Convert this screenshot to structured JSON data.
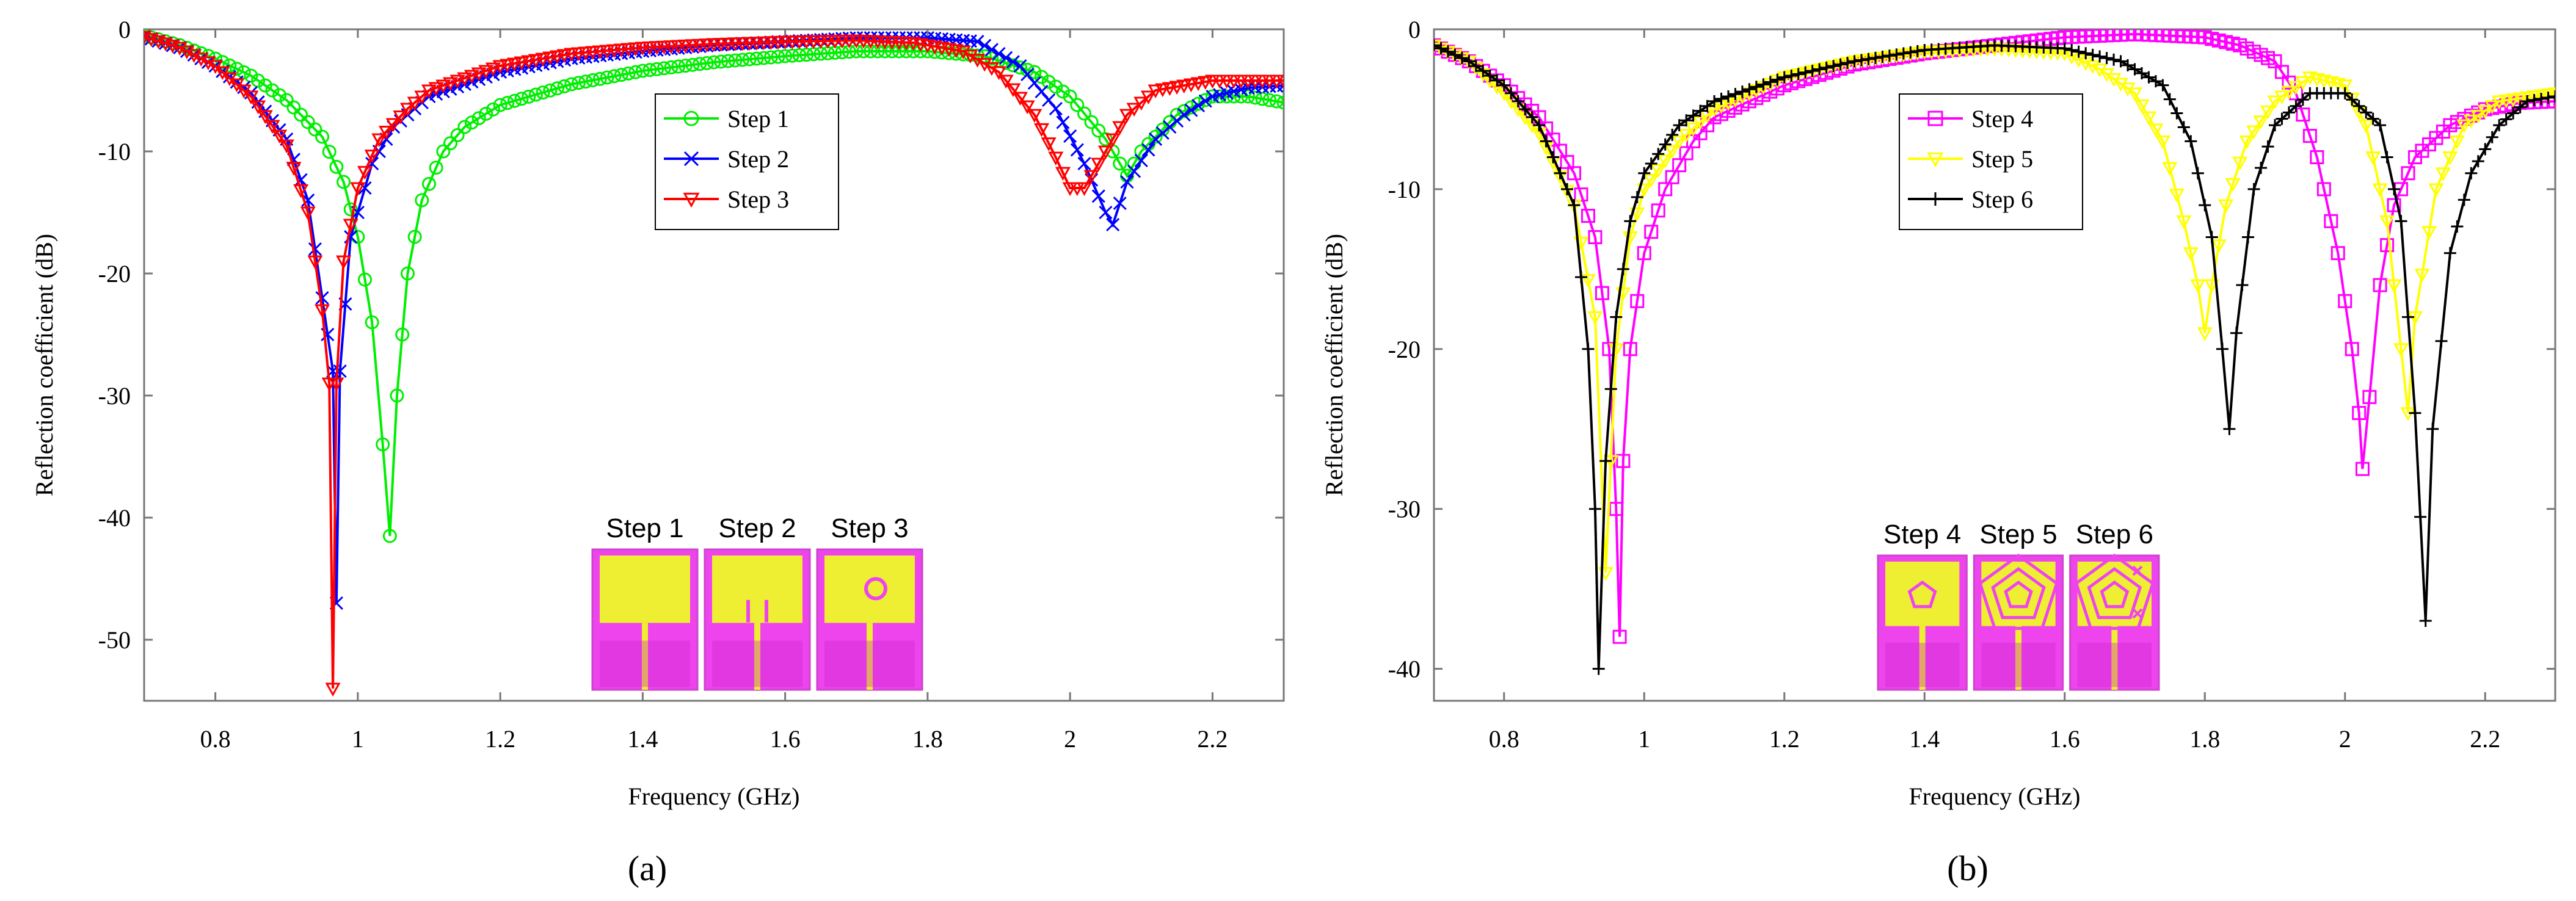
{
  "chart_data": [
    {
      "type": "line",
      "panel_label": "(a)",
      "xlabel": "Frequency (GHz)",
      "ylabel": "Reflection coefficient (dB)",
      "xlim": [
        0.7,
        2.3
      ],
      "ylim": [
        -55,
        0
      ],
      "x_ticks": [
        0.8,
        1,
        1.2,
        1.4,
        1.6,
        1.8,
        2,
        2.2
      ],
      "x_tick_labels": [
        "0.8",
        "1",
        "1.2",
        "1.4",
        "1.6",
        "1.8",
        "2",
        "2.2"
      ],
      "y_ticks": [
        0,
        -10,
        -20,
        -30,
        -40,
        -50
      ],
      "y_tick_labels": [
        "0",
        "-10",
        "-20",
        "-30",
        "-40",
        "-50"
      ],
      "grid": false,
      "legend_position": "top-center",
      "inset_labels": [
        "Step 1",
        "Step 2",
        "Step 3"
      ],
      "series": [
        {
          "name": "Step 1",
          "color": "#00ee00",
          "marker": "circle",
          "points": [
            [
              0.7,
              -0.5
            ],
            [
              0.75,
              -1.3
            ],
            [
              0.8,
              -2.4
            ],
            [
              0.85,
              -3.8
            ],
            [
              0.9,
              -5.8
            ],
            [
              0.95,
              -8.8
            ],
            [
              0.98,
              -12.5
            ],
            [
              1.0,
              -17
            ],
            [
              1.02,
              -24
            ],
            [
              1.035,
              -34
            ],
            [
              1.045,
              -41.5
            ],
            [
              1.055,
              -30
            ],
            [
              1.07,
              -20
            ],
            [
              1.09,
              -14
            ],
            [
              1.12,
              -10
            ],
            [
              1.15,
              -8
            ],
            [
              1.2,
              -6.2
            ],
            [
              1.3,
              -4.5
            ],
            [
              1.4,
              -3.4
            ],
            [
              1.5,
              -2.7
            ],
            [
              1.6,
              -2.2
            ],
            [
              1.7,
              -1.8
            ],
            [
              1.8,
              -1.8
            ],
            [
              1.88,
              -2.2
            ],
            [
              1.95,
              -3.5
            ],
            [
              2.0,
              -5.5
            ],
            [
              2.05,
              -9
            ],
            [
              2.08,
              -12
            ],
            [
              2.1,
              -10
            ],
            [
              2.15,
              -7
            ],
            [
              2.2,
              -5.5
            ],
            [
              2.25,
              -5.5
            ],
            [
              2.3,
              -6
            ]
          ]
        },
        {
          "name": "Step 2",
          "color": "#0000ff",
          "marker": "x",
          "points": [
            [
              0.7,
              -0.6
            ],
            [
              0.75,
              -1.5
            ],
            [
              0.8,
              -3
            ],
            [
              0.85,
              -5.2
            ],
            [
              0.9,
              -9
            ],
            [
              0.93,
              -14
            ],
            [
              0.95,
              -22
            ],
            [
              0.965,
              -28
            ],
            [
              0.97,
              -47
            ],
            [
              0.975,
              -28
            ],
            [
              0.99,
              -17
            ],
            [
              1.02,
              -11
            ],
            [
              1.05,
              -8
            ],
            [
              1.1,
              -5.5
            ],
            [
              1.2,
              -3.5
            ],
            [
              1.3,
              -2.4
            ],
            [
              1.4,
              -1.8
            ],
            [
              1.5,
              -1.3
            ],
            [
              1.6,
              -1
            ],
            [
              1.7,
              -0.7
            ],
            [
              1.8,
              -0.7
            ],
            [
              1.87,
              -1
            ],
            [
              1.93,
              -3
            ],
            [
              1.98,
              -6.5
            ],
            [
              2.02,
              -11
            ],
            [
              2.05,
              -15
            ],
            [
              2.06,
              -16
            ],
            [
              2.08,
              -12.5
            ],
            [
              2.12,
              -9
            ],
            [
              2.16,
              -7
            ],
            [
              2.2,
              -5.5
            ],
            [
              2.25,
              -4.8
            ],
            [
              2.3,
              -4.6
            ]
          ]
        },
        {
          "name": "Step 3",
          "color": "#ff0000",
          "marker": "triangle-down",
          "points": [
            [
              0.7,
              -0.6
            ],
            [
              0.75,
              -1.5
            ],
            [
              0.8,
              -3
            ],
            [
              0.85,
              -5.5
            ],
            [
              0.9,
              -9.5
            ],
            [
              0.93,
              -15
            ],
            [
              0.95,
              -23
            ],
            [
              0.96,
              -29
            ],
            [
              0.965,
              -54
            ],
            [
              0.97,
              -29
            ],
            [
              0.98,
              -19
            ],
            [
              1.0,
              -13
            ],
            [
              1.03,
              -9
            ],
            [
              1.07,
              -6.5
            ],
            [
              1.1,
              -5
            ],
            [
              1.2,
              -3
            ],
            [
              1.3,
              -2
            ],
            [
              1.4,
              -1.5
            ],
            [
              1.5,
              -1.2
            ],
            [
              1.6,
              -1
            ],
            [
              1.7,
              -0.9
            ],
            [
              1.78,
              -1.1
            ],
            [
              1.85,
              -1.8
            ],
            [
              1.9,
              -3.5
            ],
            [
              1.95,
              -7
            ],
            [
              1.98,
              -10.5
            ],
            [
              2.0,
              -13
            ],
            [
              2.02,
              -13
            ],
            [
              2.05,
              -10
            ],
            [
              2.08,
              -7
            ],
            [
              2.12,
              -5
            ],
            [
              2.2,
              -4.2
            ],
            [
              2.3,
              -4.2
            ]
          ]
        }
      ]
    },
    {
      "type": "line",
      "panel_label": "(b)",
      "xlabel": "Frequency (GHz)",
      "ylabel": "Reflection coefficient (dB)",
      "xlim": [
        0.7,
        2.3
      ],
      "ylim": [
        -42,
        0
      ],
      "x_ticks": [
        0.8,
        1,
        1.2,
        1.4,
        1.6,
        1.8,
        2,
        2.2
      ],
      "x_tick_labels": [
        "0.8",
        "1",
        "1.2",
        "1.4",
        "1.6",
        "1.8",
        "2",
        "2.2"
      ],
      "y_ticks": [
        0,
        -10,
        -20,
        -30,
        -40
      ],
      "y_tick_labels": [
        "0",
        "-10",
        "-20",
        "-30",
        "-40"
      ],
      "grid": false,
      "legend_position": "top-center",
      "inset_labels": [
        "Step 4",
        "Step 5",
        "Step 6"
      ],
      "series": [
        {
          "name": "Step 4",
          "color": "#ff00ff",
          "marker": "square",
          "points": [
            [
              0.7,
              -1
            ],
            [
              0.75,
              -2
            ],
            [
              0.8,
              -3.5
            ],
            [
              0.85,
              -5.5
            ],
            [
              0.9,
              -9
            ],
            [
              0.93,
              -13
            ],
            [
              0.95,
              -20
            ],
            [
              0.96,
              -30
            ],
            [
              0.965,
              -38
            ],
            [
              0.97,
              -27
            ],
            [
              0.98,
              -20
            ],
            [
              1.0,
              -14
            ],
            [
              1.03,
              -10
            ],
            [
              1.07,
              -7
            ],
            [
              1.1,
              -5.5
            ],
            [
              1.2,
              -3.5
            ],
            [
              1.3,
              -2.2
            ],
            [
              1.4,
              -1.5
            ],
            [
              1.5,
              -1
            ],
            [
              1.6,
              -0.5
            ],
            [
              1.7,
              -0.3
            ],
            [
              1.8,
              -0.5
            ],
            [
              1.85,
              -1
            ],
            [
              1.9,
              -2
            ],
            [
              1.93,
              -4
            ],
            [
              1.96,
              -8
            ],
            [
              1.99,
              -14
            ],
            [
              2.01,
              -20
            ],
            [
              2.02,
              -24
            ],
            [
              2.025,
              -27.5
            ],
            [
              2.035,
              -23
            ],
            [
              2.05,
              -16
            ],
            [
              2.07,
              -11
            ],
            [
              2.1,
              -8
            ],
            [
              2.15,
              -6
            ],
            [
              2.2,
              -5
            ],
            [
              2.25,
              -4.6
            ],
            [
              2.3,
              -4.5
            ]
          ]
        },
        {
          "name": "Step 5",
          "color": "#ffff00",
          "marker": "triangle-down",
          "points": [
            [
              0.7,
              -1
            ],
            [
              0.75,
              -2
            ],
            [
              0.8,
              -4
            ],
            [
              0.85,
              -6.5
            ],
            [
              0.9,
              -11
            ],
            [
              0.93,
              -18
            ],
            [
              0.945,
              -34
            ],
            [
              0.96,
              -20
            ],
            [
              0.98,
              -13
            ],
            [
              1.0,
              -10
            ],
            [
              1.05,
              -7
            ],
            [
              1.1,
              -5
            ],
            [
              1.2,
              -3
            ],
            [
              1.3,
              -2
            ],
            [
              1.4,
              -1.4
            ],
            [
              1.5,
              -1.2
            ],
            [
              1.6,
              -1.5
            ],
            [
              1.65,
              -2.5
            ],
            [
              1.7,
              -4
            ],
            [
              1.74,
              -7
            ],
            [
              1.77,
              -12
            ],
            [
              1.79,
              -16
            ],
            [
              1.8,
              -19
            ],
            [
              1.81,
              -16
            ],
            [
              1.83,
              -11
            ],
            [
              1.86,
              -7
            ],
            [
              1.9,
              -4.5
            ],
            [
              1.95,
              -3
            ],
            [
              2.0,
              -3.5
            ],
            [
              2.03,
              -6
            ],
            [
              2.06,
              -12
            ],
            [
              2.08,
              -20
            ],
            [
              2.09,
              -24
            ],
            [
              2.1,
              -18
            ],
            [
              2.13,
              -10
            ],
            [
              2.17,
              -6
            ],
            [
              2.22,
              -4.5
            ],
            [
              2.3,
              -4
            ]
          ]
        },
        {
          "name": "Step 6",
          "color": "#000000",
          "marker": "plus",
          "points": [
            [
              0.7,
              -1
            ],
            [
              0.75,
              -2
            ],
            [
              0.8,
              -3.5
            ],
            [
              0.85,
              -6
            ],
            [
              0.9,
              -11
            ],
            [
              0.92,
              -20
            ],
            [
              0.93,
              -30
            ],
            [
              0.935,
              -40
            ],
            [
              0.945,
              -27
            ],
            [
              0.96,
              -18
            ],
            [
              0.98,
              -12
            ],
            [
              1.0,
              -9
            ],
            [
              1.05,
              -6
            ],
            [
              1.1,
              -4.5
            ],
            [
              1.2,
              -3
            ],
            [
              1.3,
              -2
            ],
            [
              1.4,
              -1.3
            ],
            [
              1.5,
              -1
            ],
            [
              1.6,
              -1.2
            ],
            [
              1.68,
              -2
            ],
            [
              1.74,
              -3.5
            ],
            [
              1.78,
              -7
            ],
            [
              1.81,
              -13
            ],
            [
              1.825,
              -20
            ],
            [
              1.835,
              -25
            ],
            [
              1.845,
              -19
            ],
            [
              1.87,
              -10
            ],
            [
              1.9,
              -6
            ],
            [
              1.95,
              -4
            ],
            [
              2.0,
              -4
            ],
            [
              2.05,
              -6
            ],
            [
              2.08,
              -12
            ],
            [
              2.1,
              -24
            ],
            [
              2.115,
              -37
            ],
            [
              2.125,
              -25
            ],
            [
              2.15,
              -14
            ],
            [
              2.18,
              -9
            ],
            [
              2.22,
              -6
            ],
            [
              2.26,
              -4.5
            ],
            [
              2.3,
              -4.2
            ]
          ]
        }
      ]
    }
  ]
}
